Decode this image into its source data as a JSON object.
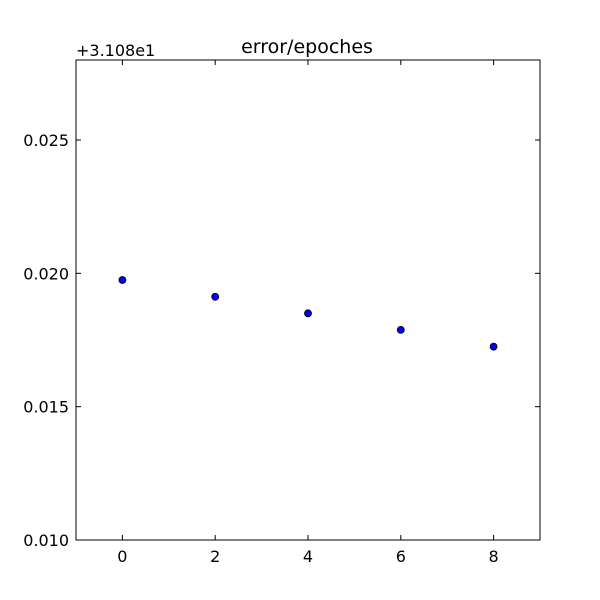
{
  "chart_data": {
    "type": "scatter",
    "title": "error/epoches",
    "xlabel": "",
    "ylabel": "",
    "y_offset_label": "+3.108e1",
    "xlim": [
      -1,
      9
    ],
    "ylim": [
      0.01,
      0.028
    ],
    "xticks": [
      0,
      2,
      4,
      6,
      8
    ],
    "xtick_labels": [
      "0",
      "2",
      "4",
      "6",
      "8"
    ],
    "yticks": [
      0.01,
      0.015,
      0.02,
      0.025
    ],
    "ytick_labels": [
      "0.010",
      "0.015",
      "0.020",
      "0.025"
    ],
    "grid": false,
    "legend": "none",
    "marker_color": "#0000ff",
    "marker_edge_color": "#000000",
    "points": [
      {
        "x": 0,
        "y": 0.01975
      },
      {
        "x": 2,
        "y": 0.01912
      },
      {
        "x": 4,
        "y": 0.0185
      },
      {
        "x": 6,
        "y": 0.01788
      },
      {
        "x": 8,
        "y": 0.01725
      }
    ]
  }
}
